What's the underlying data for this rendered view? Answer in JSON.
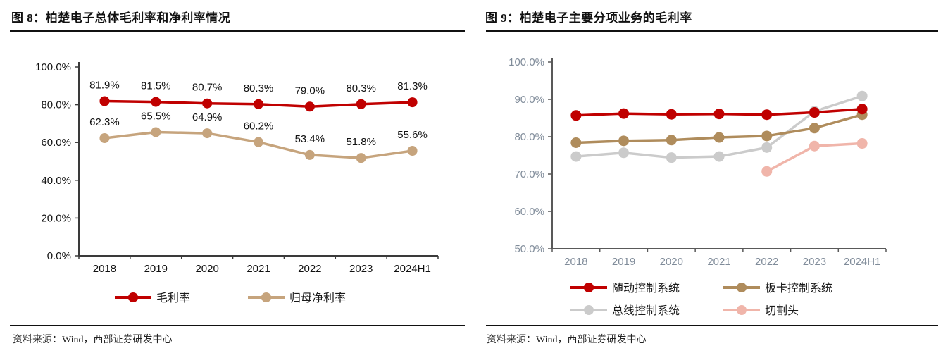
{
  "figures": [
    {
      "title": "图 8：柏楚电子总体毛利率和净利率情况",
      "source": "资料来源：Wind，西部证券研发中心"
    },
    {
      "title": "图 9：柏楚电子主要分项业务的毛利率",
      "source": "资料来源：Wind，西部证券研发中心"
    }
  ],
  "chart_data": [
    {
      "type": "line",
      "title": "柏楚电子总体毛利率和净利率情况",
      "categories": [
        "2018",
        "2019",
        "2020",
        "2021",
        "2022",
        "2023",
        "2024H1"
      ],
      "series": [
        {
          "name": "毛利率",
          "color": "#C00000",
          "values": [
            81.9,
            81.5,
            80.7,
            80.3,
            79.0,
            80.3,
            81.3
          ]
        },
        {
          "name": "归母净利率",
          "color": "#C6A47D",
          "values": [
            62.3,
            65.5,
            64.9,
            60.2,
            53.4,
            51.8,
            55.6
          ]
        }
      ],
      "ylim": [
        0,
        100
      ],
      "ytick_step": 20,
      "ytick_labels": [
        "0.0%",
        "20.0%",
        "40.0%",
        "60.0%",
        "80.0%",
        "100.0%"
      ],
      "data_labels": true,
      "grid": false,
      "legend_position": "bottom",
      "axis_label_color": "#111111"
    },
    {
      "type": "line",
      "title": "柏楚电子主要分项业务的毛利率",
      "categories": [
        "2018",
        "2019",
        "2020",
        "2021",
        "2022",
        "2023",
        "2024H1"
      ],
      "series": [
        {
          "name": "随动控制系统",
          "color": "#C00000",
          "values": [
            85.7,
            86.2,
            86.0,
            86.1,
            85.9,
            86.5,
            87.4
          ]
        },
        {
          "name": "板卡控制系统",
          "color": "#AF8C5C",
          "values": [
            78.4,
            78.9,
            79.1,
            79.8,
            80.2,
            82.3,
            85.9
          ]
        },
        {
          "name": "总线控制系统",
          "color": "#CBCBCB",
          "values": [
            74.7,
            75.7,
            74.4,
            74.7,
            77.1,
            86.8,
            90.9
          ]
        },
        {
          "name": "切割头",
          "color": "#F0B5AA",
          "values": [
            null,
            null,
            null,
            null,
            70.7,
            77.5,
            78.2
          ]
        }
      ],
      "ylim": [
        50,
        100
      ],
      "ytick_step": 10,
      "ytick_labels": [
        "50.0%",
        "60.0%",
        "70.0%",
        "80.0%",
        "90.0%",
        "100.0%"
      ],
      "data_labels": false,
      "grid": false,
      "legend_position": "bottom",
      "axis_label_color": "#808C9A"
    }
  ]
}
